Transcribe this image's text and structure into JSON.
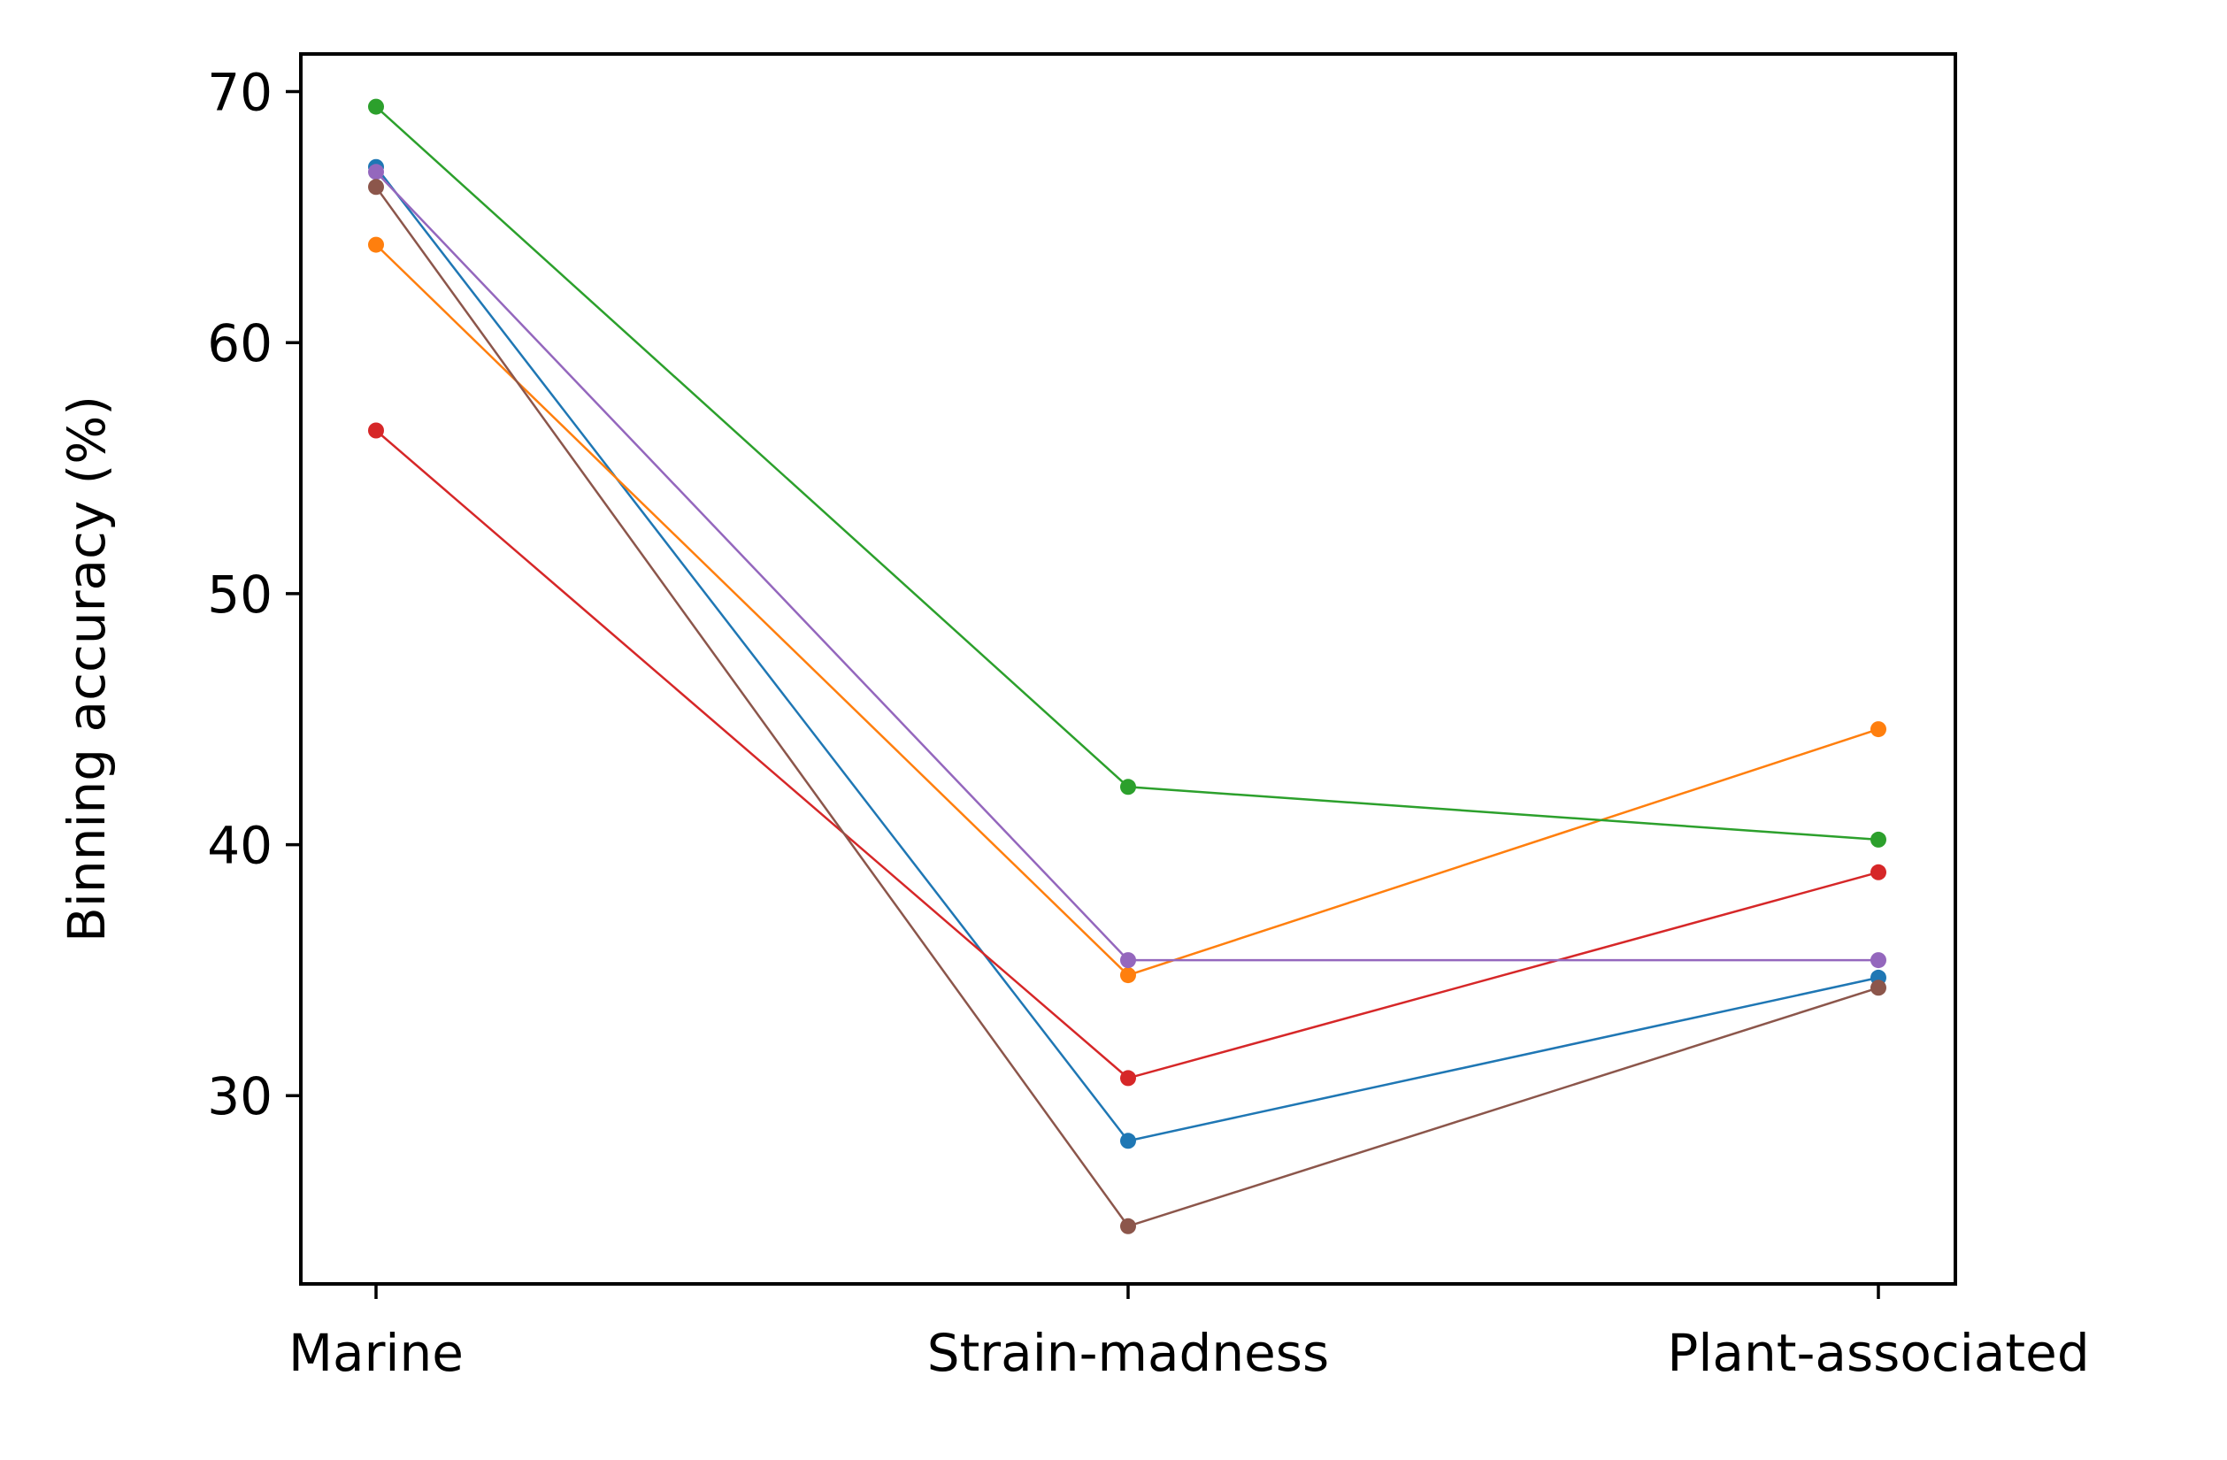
{
  "chart_data": {
    "type": "line",
    "title": "",
    "xlabel": "",
    "ylabel": "Binning accuracy (%)",
    "categories": [
      "Marine",
      "Strain-madness",
      "Plant-associated"
    ],
    "ylim": [
      22.5,
      71.5
    ],
    "yticks": [
      30,
      40,
      50,
      60,
      70
    ],
    "grid": false,
    "legend": "none",
    "series": [
      {
        "color": "#1f77b4",
        "values": [
          67.0,
          28.2,
          34.7
        ]
      },
      {
        "color": "#ff7f0e",
        "values": [
          63.9,
          34.8,
          44.6
        ]
      },
      {
        "color": "#2ca02c",
        "values": [
          69.4,
          42.3,
          40.2
        ]
      },
      {
        "color": "#d62728",
        "values": [
          56.5,
          30.7,
          38.9
        ]
      },
      {
        "color": "#9467bd",
        "values": [
          66.8,
          35.4,
          35.4
        ]
      },
      {
        "color": "#8c564b",
        "values": [
          66.2,
          24.8,
          34.3
        ]
      }
    ]
  }
}
